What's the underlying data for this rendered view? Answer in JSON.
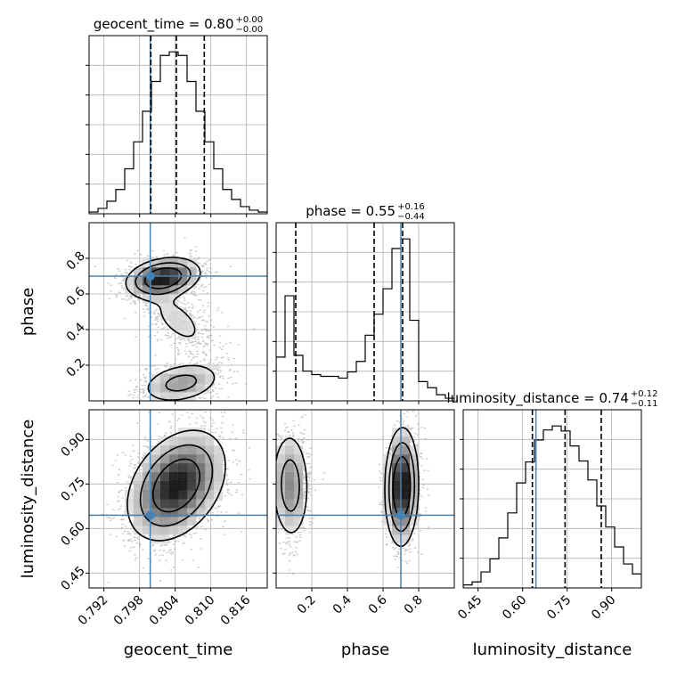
{
  "chart_data": {
    "type": "corner",
    "parameters": [
      "geocent_time",
      "phase",
      "luminosity_distance"
    ],
    "truths": {
      "geocent_time": 0.7998,
      "phase": 0.7,
      "luminosity_distance": 0.645
    },
    "titles": [
      {
        "param": "geocent_time",
        "label": "geocent_time = 0.80",
        "plus": "+0.00",
        "minus": "−0.00"
      },
      {
        "param": "phase",
        "label": "phase = 0.55",
        "plus": "+0.16",
        "minus": "−0.44"
      },
      {
        "param": "luminosity_distance",
        "label": "luminosity_distance = 0.74",
        "plus": "+0.12",
        "minus": "−0.11"
      }
    ],
    "axes": {
      "geocent_time": {
        "range": [
          0.7895,
          0.8195
        ],
        "ticks": [
          0.792,
          0.798,
          0.804,
          0.81,
          0.816
        ],
        "tick_labels": [
          "0.792",
          "0.798",
          "0.804",
          "0.810",
          "0.816"
        ]
      },
      "phase": {
        "range": [
          0.0,
          1.0
        ],
        "ticks": [
          0.2,
          0.4,
          0.6,
          0.8
        ],
        "tick_labels": [
          "0.2",
          "0.4",
          "0.6",
          "0.8"
        ]
      },
      "luminosity_distance": {
        "range": [
          0.4,
          1.0
        ],
        "ticks": [
          0.45,
          0.6,
          0.75,
          0.9
        ],
        "tick_labels": [
          "0.45",
          "0.60",
          "0.75",
          "0.90"
        ]
      }
    },
    "marginals": {
      "geocent_time": {
        "quantiles": [
          0.7999,
          0.8042,
          0.8089
        ],
        "bin_edges": [
          0.7895,
          0.791,
          0.7925,
          0.794,
          0.7955,
          0.797,
          0.7985,
          0.8,
          0.8015,
          0.803,
          0.8045,
          0.806,
          0.8075,
          0.809,
          0.8105,
          0.812,
          0.8135,
          0.815,
          0.8165,
          0.818,
          0.8195
        ],
        "counts": [
          2,
          6,
          14,
          27,
          50,
          80,
          114,
          147,
          176,
          180,
          176,
          147,
          114,
          80,
          50,
          27,
          16,
          8,
          4,
          2
        ]
      },
      "phase": {
        "quantiles": [
          0.11,
          0.55,
          0.71
        ],
        "bin_edges": [
          0.0,
          0.05,
          0.1,
          0.15,
          0.2,
          0.25,
          0.3,
          0.35,
          0.4,
          0.45,
          0.5,
          0.55,
          0.6,
          0.65,
          0.7,
          0.75,
          0.8,
          0.85,
          0.9,
          0.95,
          1.0
        ],
        "counts": [
          50,
          120,
          52,
          34,
          30,
          28,
          28,
          26,
          33,
          45,
          75,
          99,
          128,
          174,
          185,
          92,
          22,
          15,
          7,
          3
        ]
      },
      "luminosity_distance": {
        "quantiles": [
          0.633,
          0.743,
          0.865
        ],
        "bin_edges": [
          0.4,
          0.43,
          0.46,
          0.49,
          0.52,
          0.55,
          0.58,
          0.61,
          0.64,
          0.67,
          0.7,
          0.73,
          0.76,
          0.79,
          0.82,
          0.85,
          0.88,
          0.91,
          0.94,
          0.97,
          1.0
        ],
        "counts": [
          3,
          6,
          16,
          29,
          50,
          75,
          105,
          126,
          148,
          158,
          162,
          157,
          142,
          127,
          108,
          82,
          61,
          41,
          24,
          14
        ]
      }
    },
    "colors": {
      "truth": "#4682b4",
      "hist": "#000000",
      "contour": "#000000",
      "grid": "#b0b0b0",
      "density": "#000000"
    }
  }
}
